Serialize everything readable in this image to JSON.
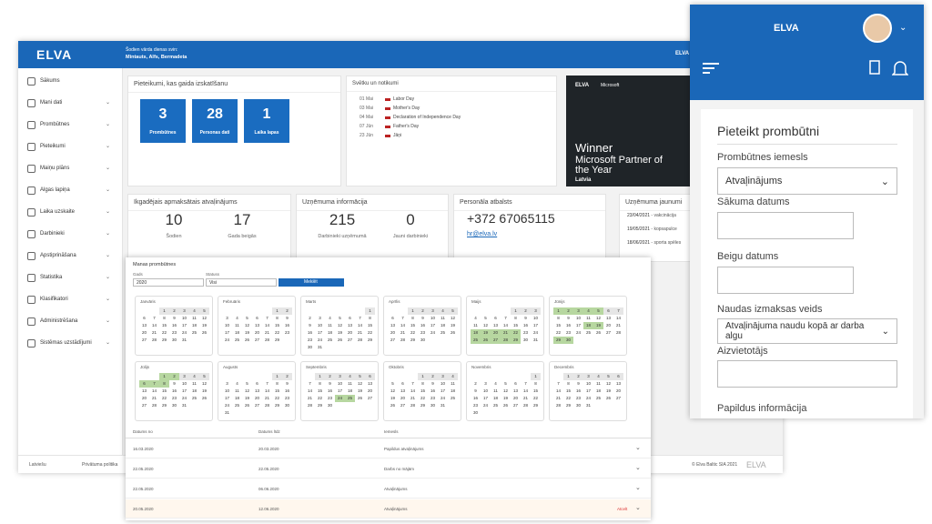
{
  "topbar": {
    "logo": "ELVA",
    "nameday_title": "Šodien vārda dienas svin:",
    "nameday_names": "Mintauts, Alfs, Bermadeta",
    "company": "ELVA"
  },
  "sidebar": [
    "Sākums",
    "Mani dati",
    "Prombūtnes",
    "Pieteikumi",
    "Maiņu plāns",
    "Algas lapiņa",
    "Laika uzskaite",
    "Darbinieki",
    "Apstiprināšana",
    "Statistika",
    "Klasifikatori",
    "Administrēšana",
    "Sistēmas uzstādījumi"
  ],
  "pending": {
    "title": "Pieteikumi, kas gaida izskatīšanu",
    "tiles": [
      {
        "value": "3",
        "label": "Prombūtnes"
      },
      {
        "value": "28",
        "label": "Personas dati"
      },
      {
        "value": "1",
        "label": "Laika lapas"
      }
    ]
  },
  "holidays": {
    "title": "Svētku un notikumi",
    "items": [
      {
        "date": "01 Mai",
        "name": "Labor Day"
      },
      {
        "date": "03 Mai",
        "name": "Mother's Day"
      },
      {
        "date": "04 Mai",
        "name": "Declaration of Independence Day"
      },
      {
        "date": "07 Jūn",
        "name": "Father's Day"
      },
      {
        "date": "23 Jūn",
        "name": "Jāņi"
      }
    ]
  },
  "banner": {
    "brand": "ELVA",
    "partner": "Microsoft",
    "headline": "Winner",
    "subline": "Microsoft Partner of the Year",
    "country": "Latvia"
  },
  "vacation": {
    "title": "Ikgadējais apmaksātais atvaļinājums",
    "stats": [
      {
        "value": "10",
        "label": "Šodien"
      },
      {
        "value": "17",
        "label": "Gada beigās"
      }
    ]
  },
  "company": {
    "title": "Uzņēmuma informācija",
    "stats": [
      {
        "value": "215",
        "label": "Darbinieki uzņēmumā"
      },
      {
        "value": "0",
        "label": "Jauni darbinieki"
      }
    ]
  },
  "support": {
    "title": "Personāla atbalsts",
    "phone": "+372 67065115",
    "email": "hr@elva.lv"
  },
  "news": {
    "title": "Uzņēmuma jaunumi",
    "items": [
      {
        "date": "23/04/2021",
        "text": " - vakcinācija"
      },
      {
        "date": "19/05/2021",
        "text": " - kopsapulce"
      },
      {
        "date": "18/06/2021",
        "text": " - sporta spēles"
      }
    ]
  },
  "footer": {
    "language": "Latviešu",
    "privacy": "Privātuma politika",
    "copyright": "© Elva Baltic SIA 2021",
    "logo": "ELVA"
  },
  "absences": {
    "title": "Manas prombūtnes",
    "year_label": "Gads",
    "year": "2020",
    "status_label": "Statuss",
    "status": "Visi",
    "button": "Meklēt",
    "months": [
      {
        "name": "Janvāris",
        "days": [
          1,
          2,
          3,
          4,
          5,
          6,
          7,
          8,
          9,
          10,
          11,
          12,
          13,
          14,
          15,
          16,
          17,
          18,
          19,
          20,
          21,
          22,
          23,
          24,
          25,
          26,
          27,
          28,
          29,
          30,
          31
        ],
        "marked": []
      },
      {
        "name": "Februāris",
        "days": [
          1,
          2,
          3,
          4,
          5,
          6,
          7,
          8,
          9,
          10,
          11,
          12,
          13,
          14,
          15,
          16,
          17,
          18,
          19,
          20,
          21,
          22,
          23,
          24,
          25,
          26,
          27,
          28,
          29
        ],
        "marked": []
      },
      {
        "name": "Marts",
        "days": [
          1,
          2,
          3,
          4,
          5,
          6,
          7,
          8,
          9,
          10,
          11,
          12,
          13,
          14,
          15,
          16,
          17,
          18,
          19,
          20,
          21,
          22,
          23,
          24,
          25,
          26,
          27,
          28,
          29,
          30,
          31
        ],
        "marked": []
      },
      {
        "name": "Aprīlis",
        "days": [
          1,
          2,
          3,
          4,
          5,
          6,
          7,
          8,
          9,
          10,
          11,
          12,
          13,
          14,
          15,
          16,
          17,
          18,
          19,
          20,
          21,
          22,
          23,
          24,
          25,
          26,
          27,
          28,
          29,
          30
        ],
        "marked": []
      },
      {
        "name": "Maijs",
        "days": [
          1,
          2,
          3,
          4,
          5,
          6,
          7,
          8,
          9,
          10,
          11,
          12,
          13,
          14,
          15,
          16,
          17,
          18,
          19,
          20,
          21,
          22,
          23,
          24,
          25,
          26,
          27,
          28,
          29,
          30,
          31
        ],
        "marked": [
          18,
          19,
          20,
          21,
          22,
          25,
          26,
          27,
          28,
          29
        ]
      },
      {
        "name": "Jūnijs",
        "days": [
          1,
          2,
          3,
          4,
          5,
          6,
          7,
          8,
          9,
          10,
          11,
          12,
          13,
          14,
          15,
          16,
          17,
          18,
          19,
          20,
          21,
          22,
          23,
          24,
          25,
          26,
          27,
          28,
          29,
          30
        ],
        "marked": [
          1,
          2,
          3,
          4,
          5,
          18,
          19,
          29,
          30
        ]
      },
      {
        "name": "Jūlijs",
        "days": [
          1,
          2,
          3,
          4,
          5,
          6,
          7,
          8,
          9,
          10,
          11,
          12,
          13,
          14,
          15,
          16,
          17,
          18,
          19,
          20,
          21,
          22,
          23,
          24,
          25,
          26,
          27,
          28,
          29,
          30,
          31
        ],
        "marked": [
          1,
          2,
          6,
          7,
          8
        ]
      },
      {
        "name": "Augusts",
        "days": [
          1,
          2,
          3,
          4,
          5,
          6,
          7,
          8,
          9,
          10,
          11,
          12,
          13,
          14,
          15,
          16,
          17,
          18,
          19,
          20,
          21,
          22,
          23,
          24,
          25,
          26,
          27,
          28,
          29,
          30,
          31
        ],
        "marked": []
      },
      {
        "name": "Septembris",
        "days": [
          1,
          2,
          3,
          4,
          5,
          6,
          7,
          8,
          9,
          10,
          11,
          12,
          13,
          14,
          15,
          16,
          17,
          18,
          19,
          20,
          21,
          22,
          23,
          24,
          25,
          26,
          27,
          28,
          29,
          30
        ],
        "marked": [
          24,
          25
        ]
      },
      {
        "name": "Oktobris",
        "days": [
          1,
          2,
          3,
          4,
          5,
          6,
          7,
          8,
          9,
          10,
          11,
          12,
          13,
          14,
          15,
          16,
          17,
          18,
          19,
          20,
          21,
          22,
          23,
          24,
          25,
          26,
          27,
          28,
          29,
          30,
          31
        ],
        "marked": []
      },
      {
        "name": "Novembris",
        "days": [
          1,
          2,
          3,
          4,
          5,
          6,
          7,
          8,
          9,
          10,
          11,
          12,
          13,
          14,
          15,
          16,
          17,
          18,
          19,
          20,
          21,
          22,
          23,
          24,
          25,
          26,
          27,
          28,
          29,
          30
        ],
        "marked": []
      },
      {
        "name": "Decembris",
        "days": [
          1,
          2,
          3,
          4,
          5,
          6,
          7,
          8,
          9,
          10,
          11,
          12,
          13,
          14,
          15,
          16,
          17,
          18,
          19,
          20,
          21,
          22,
          23,
          24,
          25,
          26,
          27,
          28,
          29,
          30,
          31
        ],
        "marked": []
      }
    ],
    "columns": [
      "Datums no",
      "Datums līdz",
      "Iemesls"
    ],
    "rows": [
      [
        "16.03.2020",
        "20.03.2020",
        "Papildus atvaļinājums"
      ],
      [
        "22.05.2020",
        "22.05.2020",
        "Darbs no mājām"
      ],
      [
        "22.05.2020",
        "06.06.2020",
        "Atvaļinājums"
      ],
      [
        "20.05.2020",
        "12.06.2020",
        "Atvaļinājums"
      ]
    ],
    "cancel": "Atcelt"
  },
  "mobile": {
    "logo": "ELVA",
    "form_title": "Pieteikt prombūtni",
    "reason_label": "Prombūtnes iemesls",
    "reason": "Atvaļinājums",
    "start_label": "Sākuma datums",
    "end_label": "Beigu datums",
    "pay_label": "Naudas izmaksas veids",
    "pay": "Atvaļinājuma naudu kopā ar darba algu",
    "substitute_label": "Aizvietotājs",
    "extra_label": "Papildus informācija"
  }
}
